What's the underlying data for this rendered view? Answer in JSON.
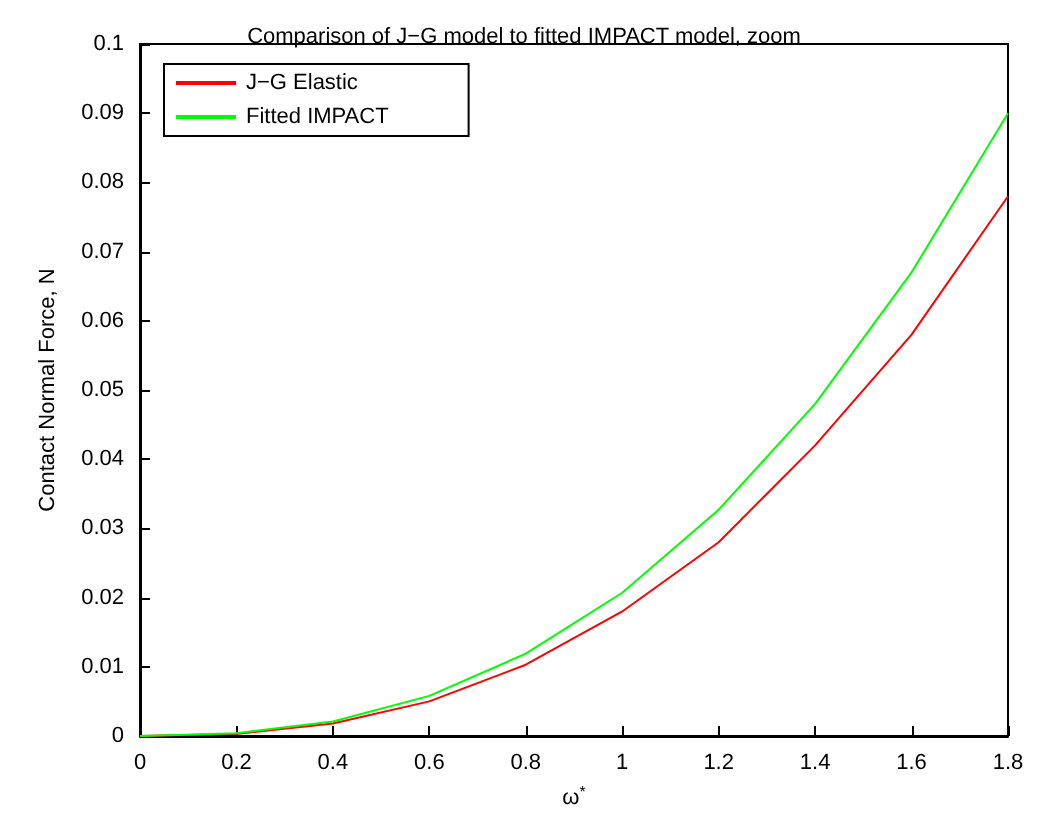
{
  "chart_data": {
    "type": "line",
    "title": "Comparison of J−G model to fitted IMPACT model, zoom",
    "xlabel": "ω$^{*}$",
    "ylabel": "Contact Normal Force, N",
    "x": [
      0,
      0.2,
      0.4,
      0.6,
      0.8,
      1.0,
      1.2,
      1.4,
      1.6,
      1.8
    ],
    "series": [
      {
        "name": "J−G Elastic",
        "color": "#ff0000",
        "values": [
          0,
          0.0003,
          0.0018,
          0.005,
          0.0103,
          0.018,
          0.028,
          0.042,
          0.058,
          0.078
        ]
      },
      {
        "name": "Fitted IMPACT",
        "color": "#00ff00",
        "values": [
          0,
          0.0004,
          0.0021,
          0.0058,
          0.0119,
          0.0207,
          0.0327,
          0.048,
          0.067,
          0.09
        ]
      }
    ],
    "xlim": [
      0,
      1.8
    ],
    "xticks": [
      0,
      0.2,
      0.4,
      0.6,
      0.8,
      1,
      1.2,
      1.4,
      1.6,
      1.8
    ],
    "ylim": [
      0,
      0.1
    ],
    "yticks": [
      0,
      0.01,
      0.02,
      0.03,
      0.04,
      0.05,
      0.06,
      0.07,
      0.08,
      0.09,
      0.1
    ],
    "grid": false,
    "legend": "top left",
    "marker": "none",
    "line_style": "solid"
  }
}
